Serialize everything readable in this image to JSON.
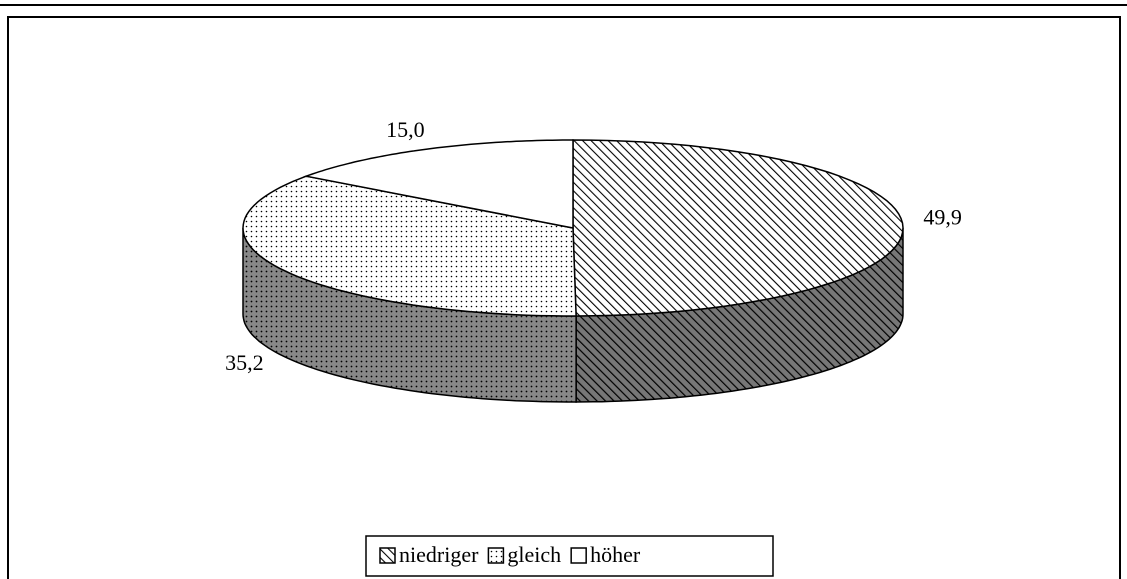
{
  "chart_data": {
    "type": "pie",
    "categories": [
      "niedriger",
      "gleich",
      "höher"
    ],
    "values": [
      49.9,
      35.2,
      15.0
    ],
    "value_labels": [
      "49,9",
      "35,2",
      "15,0"
    ],
    "legend": "bottom"
  }
}
